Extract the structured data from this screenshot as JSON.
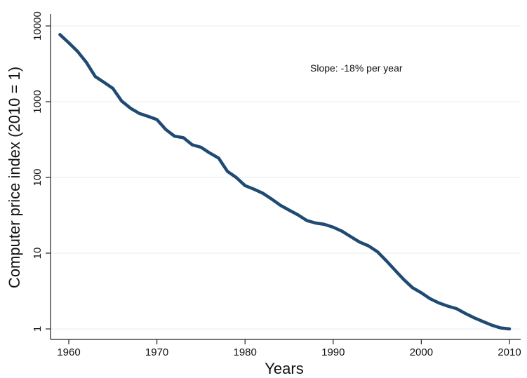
{
  "chart_data": {
    "type": "line",
    "title": "",
    "xlabel": "Years",
    "ylabel": "Computer price index (2010 = 1)",
    "yscale": "log",
    "xlim": [
      1958.5,
      2010.5
    ],
    "ylim": [
      0.7,
      13000
    ],
    "grid": true,
    "legend": "none",
    "x_ticks": [
      1960,
      1970,
      1980,
      1990,
      2000,
      2010
    ],
    "x_tick_labels": [
      "1960",
      "1970",
      "1980",
      "1990",
      "2000",
      "2010"
    ],
    "y_ticks": [
      1,
      10,
      100,
      1000,
      10000
    ],
    "y_tick_labels": [
      "1",
      "10",
      "100",
      "1000",
      "10000"
    ],
    "annotation": "Slope:  -18% per year",
    "colors": {
      "line": "#1f4a73",
      "grid": "#e4ecf0"
    },
    "series": [
      {
        "x": [
          1959,
          1960,
          1961,
          1962,
          1963,
          1964,
          1965,
          1966,
          1967,
          1968,
          1969,
          1970,
          1971,
          1972,
          1973,
          1974,
          1975,
          1976,
          1977,
          1978,
          1979,
          1980,
          1981,
          1982,
          1983,
          1984,
          1985,
          1986,
          1987,
          1988,
          1989,
          1990,
          1991,
          1992,
          1993,
          1994,
          1995,
          1996,
          1997,
          1998,
          1999,
          2000,
          2001,
          2002,
          2003,
          2004,
          2005,
          2006,
          2007,
          2008,
          2009,
          2010
        ],
        "values": [
          7700,
          6000,
          4600,
          3300,
          2150,
          1800,
          1500,
          1020,
          820,
          700,
          640,
          580,
          430,
          350,
          335,
          270,
          250,
          210,
          180,
          120,
          100,
          78,
          70,
          62,
          52,
          43,
          37,
          32,
          27,
          25,
          24,
          22,
          19.5,
          16.5,
          14,
          12.5,
          10.5,
          8,
          6,
          4.5,
          3.5,
          3,
          2.5,
          2.2,
          2,
          1.85,
          1.6,
          1.4,
          1.25,
          1.12,
          1.03,
          1
        ]
      }
    ]
  }
}
